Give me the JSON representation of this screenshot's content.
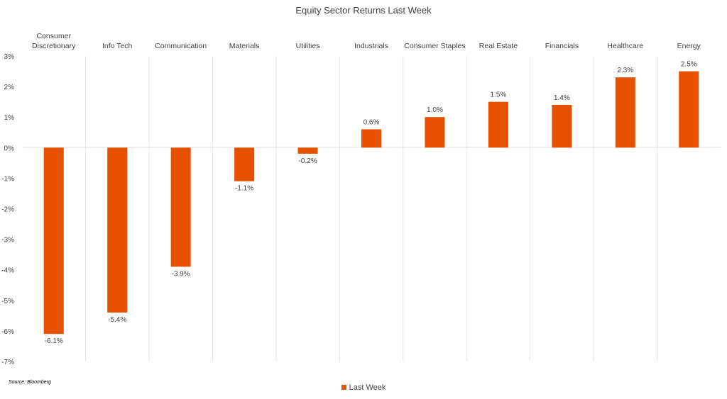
{
  "chart_data": {
    "type": "bar",
    "title": "Equity Sector Returns Last Week",
    "categories": [
      "Consumer\nDiscretionary",
      "Info Tech",
      "Communication",
      "Materials",
      "Utilities",
      "Industrials",
      "Consumer Staples",
      "Real Estate",
      "Financials",
      "Healthcare",
      "Energy"
    ],
    "series": [
      {
        "name": "Last Week",
        "values": [
          -6.1,
          -5.4,
          -3.9,
          -1.1,
          -0.2,
          0.6,
          1.0,
          1.5,
          1.4,
          2.3,
          2.5
        ]
      }
    ],
    "data_labels": [
      "-6.1%",
      "-5.4%",
      "-3.9%",
      "-1.1%",
      "-0.2%",
      "0.6%",
      "1.0%",
      "1.5%",
      "1.4%",
      "2.3%",
      "2.5%"
    ],
    "ylim": [
      -7,
      3
    ],
    "yticks": [
      "3%",
      "2%",
      "1%",
      "0%",
      "-1%",
      "-2%",
      "-3%",
      "-4%",
      "-5%",
      "-6%",
      "-7%"
    ],
    "xlabel": "",
    "ylabel": "",
    "grid": "vertical category separators",
    "legend_position": "bottom",
    "bar_color": "#E65100",
    "source": "Source: Bloomberg"
  }
}
